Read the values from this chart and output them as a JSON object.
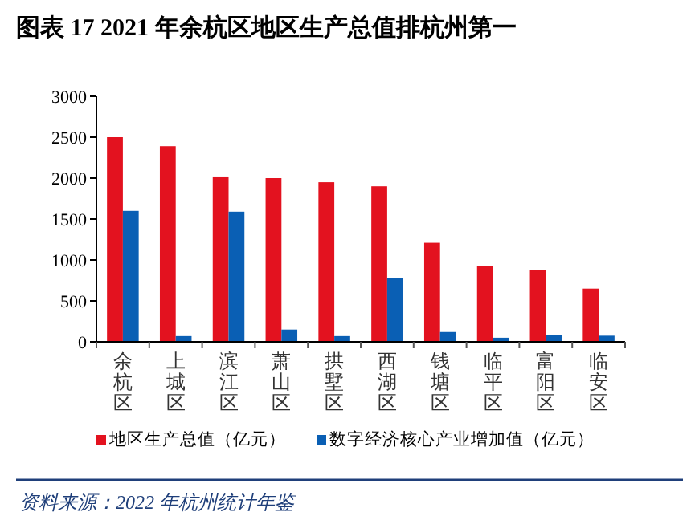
{
  "chart_data": {
    "type": "bar",
    "title": "图表 17  2021 年余杭区地区生产总值排杭州第一",
    "categories": [
      "余杭区",
      "上城区",
      "滨江区",
      "萧山区",
      "拱墅区",
      "西湖区",
      "钱塘区",
      "临平区",
      "富阳区",
      "临安区"
    ],
    "series": [
      {
        "name": "地区生产总值（亿元）",
        "color": "#e3121f",
        "values": [
          2500,
          2390,
          2020,
          2000,
          1950,
          1900,
          1210,
          930,
          880,
          650
        ]
      },
      {
        "name": "数字经济核心产业增加值（亿元）",
        "color": "#0a5fb4",
        "values": [
          1600,
          70,
          1590,
          150,
          70,
          780,
          120,
          50,
          85,
          75
        ]
      }
    ],
    "ylim": [
      0,
      3000
    ],
    "yticks": [
      0,
      500,
      1000,
      1500,
      2000,
      2500,
      3000
    ],
    "grid": false,
    "legend": "bottom",
    "annotations": [
      "资料来源：2022 年杭州统计年鉴"
    ]
  }
}
